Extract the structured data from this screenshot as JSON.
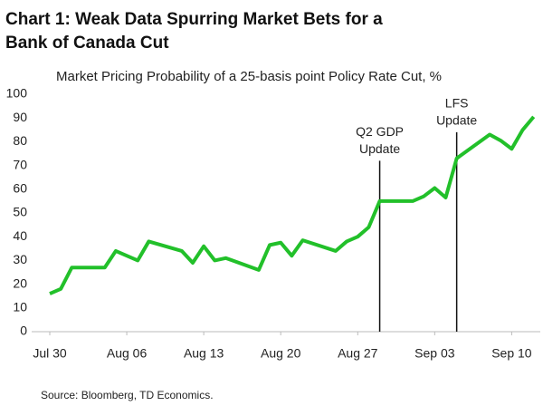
{
  "chart_data": {
    "type": "line",
    "title": [
      "Chart 1: Weak Data Spurring Market Bets for a",
      "Bank of Canada Cut"
    ],
    "subtitle": "Market Pricing Probability of a 25-basis point Policy Rate Cut, %",
    "source": "Source: Bloomberg, TD Economics.",
    "x": [
      0,
      1,
      2,
      3,
      5,
      6,
      8,
      9,
      12,
      13,
      14,
      15,
      16,
      19,
      20,
      21,
      22,
      23,
      26,
      27,
      28,
      29,
      30,
      33,
      34,
      35,
      36,
      37,
      40,
      41,
      42,
      43,
      44
    ],
    "series": [
      {
        "color": "#22c02a",
        "values": [
          16,
          18,
          27,
          27,
          27,
          34,
          30,
          38,
          34,
          29,
          36,
          30,
          31,
          26,
          36.5,
          37.5,
          32,
          38.5,
          34,
          38,
          40,
          44,
          55,
          55,
          57,
          60.5,
          56.5,
          73,
          83,
          80.5,
          77,
          85,
          90.5
        ]
      }
    ],
    "xlim": [
      0,
      44.6
    ],
    "xticks": [
      {
        "value": 0,
        "label": "Jul 30"
      },
      {
        "value": 7,
        "label": "Aug 06"
      },
      {
        "value": 14,
        "label": "Aug 13"
      },
      {
        "value": 21,
        "label": "Aug 20"
      },
      {
        "value": 28,
        "label": "Aug 27"
      },
      {
        "value": 35,
        "label": "Sep 03"
      },
      {
        "value": 42,
        "label": "Sep 10"
      }
    ],
    "ylim": [
      0,
      100
    ],
    "yticks": [
      0,
      10,
      20,
      30,
      40,
      50,
      60,
      70,
      80,
      90,
      100
    ],
    "annotations": [
      {
        "lines": [
          "Q2 GDP",
          "Update"
        ],
        "x": 30,
        "y": 72
      },
      {
        "lines": [
          "LFS",
          "Update"
        ],
        "x": 37,
        "y": 84
      }
    ]
  }
}
